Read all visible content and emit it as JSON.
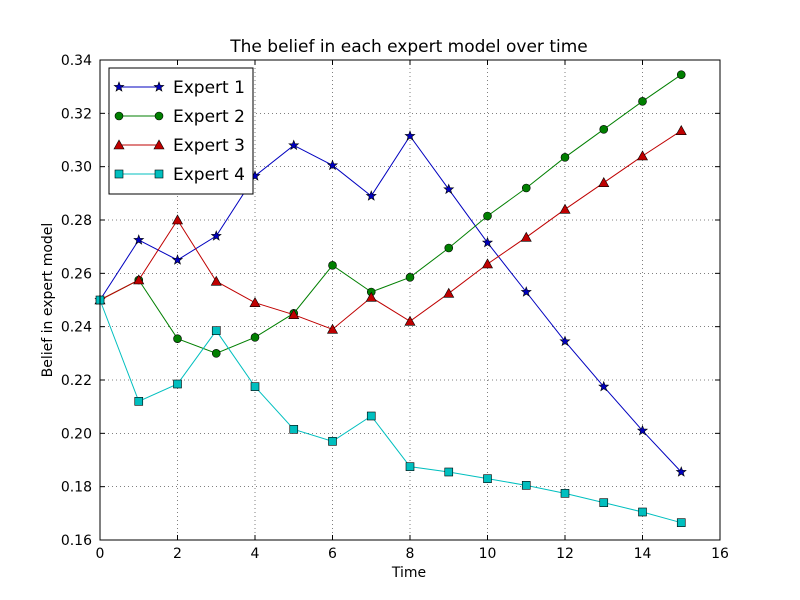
{
  "chart_data": {
    "type": "line",
    "title": "The belief in each expert model over time",
    "xlabel": "Time",
    "ylabel": "Belief in expert model",
    "xlim": [
      0,
      16
    ],
    "ylim": [
      0.16,
      0.34
    ],
    "xticks": [
      0,
      2,
      4,
      6,
      8,
      10,
      12,
      14,
      16
    ],
    "yticks": [
      0.16,
      0.18,
      0.2,
      0.22,
      0.24,
      0.26,
      0.28,
      0.3,
      0.32,
      0.34
    ],
    "ytick_labels": [
      "0.16",
      "0.18",
      "0.20",
      "0.22",
      "0.24",
      "0.26",
      "0.28",
      "0.30",
      "0.32",
      "0.34"
    ],
    "grid": true,
    "legend_position": "top-left",
    "x": [
      0,
      1,
      2,
      3,
      4,
      5,
      6,
      7,
      8,
      9,
      10,
      11,
      12,
      13,
      14,
      15
    ],
    "series": [
      {
        "name": "Expert 1",
        "color": "#0000bf",
        "marker": "star",
        "values": [
          0.25,
          0.2725,
          0.265,
          0.274,
          0.2965,
          0.308,
          0.3005,
          0.289,
          0.3115,
          0.2915,
          0.2715,
          0.253,
          0.2345,
          0.2175,
          0.201,
          0.1855
        ]
      },
      {
        "name": "Expert 2",
        "color": "#007f00",
        "marker": "circle",
        "values": [
          0.25,
          0.2575,
          0.2355,
          0.23,
          0.236,
          0.245,
          0.263,
          0.253,
          0.2585,
          0.2695,
          0.2815,
          0.292,
          0.3035,
          0.314,
          0.3245,
          0.3345
        ]
      },
      {
        "name": "Expert 3",
        "color": "#bf0000",
        "marker": "triangle",
        "values": [
          0.25,
          0.2575,
          0.28,
          0.257,
          0.249,
          0.2445,
          0.239,
          0.251,
          0.242,
          0.2525,
          0.2635,
          0.2735,
          0.284,
          0.294,
          0.304,
          0.3135
        ]
      },
      {
        "name": "Expert 4",
        "color": "#00bfbf",
        "marker": "square",
        "values": [
          0.25,
          0.212,
          0.2185,
          0.2385,
          0.2175,
          0.2015,
          0.197,
          0.2065,
          0.1875,
          0.1855,
          0.183,
          0.1805,
          0.1775,
          0.174,
          0.1705,
          0.1665
        ]
      }
    ]
  }
}
